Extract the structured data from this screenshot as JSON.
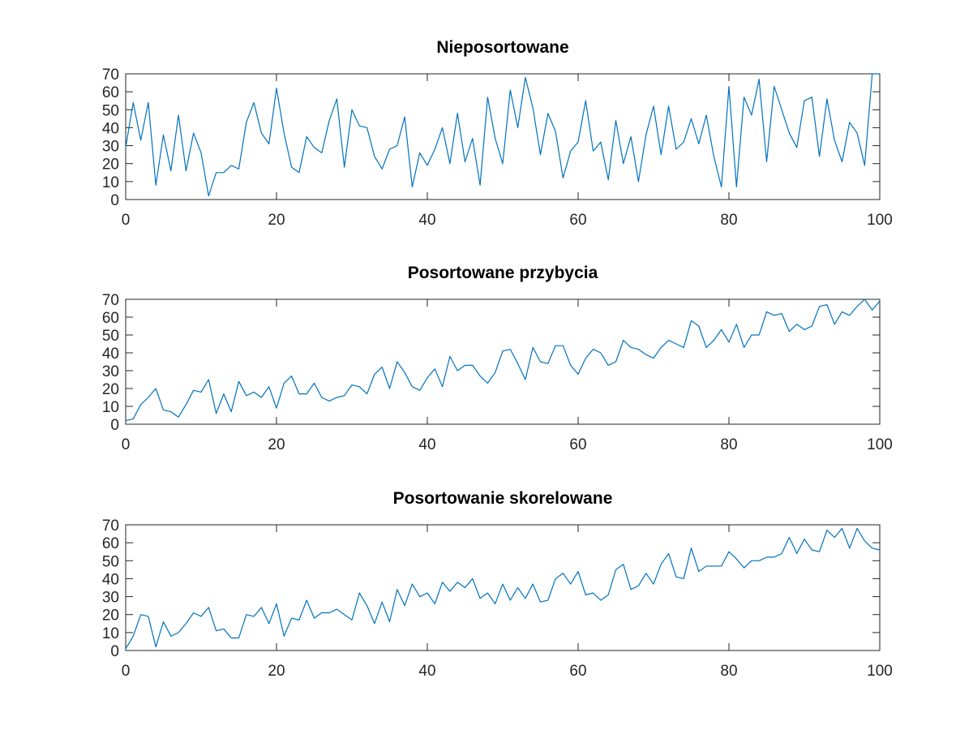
{
  "chart_data": [
    {
      "type": "line",
      "title": "Nieposortowane",
      "xlabel": "",
      "ylabel": "",
      "xlim": [
        0,
        100
      ],
      "ylim": [
        0,
        70
      ],
      "xticks": [
        0,
        20,
        40,
        60,
        80,
        100
      ],
      "yticks": [
        0,
        10,
        20,
        30,
        40,
        50,
        60,
        70
      ],
      "grid": false,
      "color": "#0072bd",
      "series": [
        {
          "x": [
            0,
            1,
            2,
            3,
            4,
            5,
            6,
            7,
            8,
            9,
            10,
            11,
            12,
            13,
            14,
            15,
            16,
            17,
            18,
            19,
            20,
            21,
            22,
            23,
            24,
            25,
            26,
            27,
            28,
            29,
            30,
            31,
            32,
            33,
            34,
            35,
            36,
            37,
            38,
            39,
            40,
            41,
            42,
            43,
            44,
            45,
            46,
            47,
            48,
            49,
            50,
            51,
            52,
            53,
            54,
            55,
            56,
            57,
            58,
            59,
            60,
            61,
            62,
            63,
            64,
            65,
            66,
            67,
            68,
            69,
            70,
            71,
            72,
            73,
            74,
            75,
            76,
            77,
            78,
            79,
            80,
            81,
            82,
            83,
            84,
            85,
            86,
            87,
            88,
            89,
            90,
            91,
            92,
            93,
            94,
            95,
            96,
            97,
            98,
            99,
            100
          ],
          "values": [
            29,
            54,
            33,
            54,
            8,
            36,
            16,
            47,
            16,
            37,
            26,
            2,
            15,
            15,
            19,
            17,
            43,
            54,
            37,
            31,
            62,
            37,
            18,
            15,
            35,
            29,
            26,
            44,
            56,
            18,
            50,
            41,
            40,
            24,
            17,
            28,
            30,
            46,
            7,
            26,
            19,
            28,
            40,
            20,
            48,
            21,
            34,
            8,
            57,
            34,
            20,
            61,
            40,
            68,
            51,
            25,
            48,
            38,
            12,
            27,
            32,
            55,
            27,
            32,
            11,
            44,
            20,
            35,
            10,
            36,
            52,
            25,
            52,
            28,
            32,
            45,
            31,
            47,
            24,
            7,
            63,
            7,
            57,
            47,
            67,
            21,
            63,
            50,
            37,
            29,
            55,
            57,
            24,
            56,
            33,
            21,
            43,
            37,
            19,
            70,
            70
          ]
        }
      ]
    },
    {
      "type": "line",
      "title": "Posortowane przybycia",
      "xlabel": "",
      "ylabel": "",
      "xlim": [
        0,
        100
      ],
      "ylim": [
        0,
        70
      ],
      "xticks": [
        0,
        20,
        40,
        60,
        80,
        100
      ],
      "yticks": [
        0,
        10,
        20,
        30,
        40,
        50,
        60,
        70
      ],
      "grid": false,
      "color": "#0072bd",
      "series": [
        {
          "x": [
            0,
            1,
            2,
            3,
            4,
            5,
            6,
            7,
            8,
            9,
            10,
            11,
            12,
            13,
            14,
            15,
            16,
            17,
            18,
            19,
            20,
            21,
            22,
            23,
            24,
            25,
            26,
            27,
            28,
            29,
            30,
            31,
            32,
            33,
            34,
            35,
            36,
            37,
            38,
            39,
            40,
            41,
            42,
            43,
            44,
            45,
            46,
            47,
            48,
            49,
            50,
            51,
            52,
            53,
            54,
            55,
            56,
            57,
            58,
            59,
            60,
            61,
            62,
            63,
            64,
            65,
            66,
            67,
            68,
            69,
            70,
            71,
            72,
            73,
            74,
            75,
            76,
            77,
            78,
            79,
            80,
            81,
            82,
            83,
            84,
            85,
            86,
            87,
            88,
            89,
            90,
            91,
            92,
            93,
            94,
            95,
            96,
            97,
            98,
            99,
            100
          ],
          "values": [
            2,
            3,
            11,
            15,
            20,
            8,
            7,
            4,
            11,
            19,
            18,
            25,
            6,
            17,
            7,
            24,
            16,
            18,
            15,
            21,
            9,
            23,
            27,
            17,
            17,
            23,
            15,
            13,
            15,
            16,
            22,
            21,
            17,
            28,
            32,
            20,
            35,
            29,
            21,
            19,
            26,
            31,
            21,
            38,
            30,
            33,
            33,
            27,
            23,
            29,
            41,
            42,
            34,
            25,
            43,
            35,
            34,
            44,
            44,
            33,
            28,
            37,
            42,
            40,
            33,
            35,
            47,
            43,
            42,
            39,
            37,
            43,
            47,
            45,
            43,
            58,
            55,
            43,
            47,
            53,
            46,
            56,
            43,
            50,
            50,
            63,
            61,
            62,
            52,
            56,
            53,
            55,
            66,
            67,
            56,
            63,
            61,
            66,
            70,
            64,
            69
          ]
        }
      ]
    },
    {
      "type": "line",
      "title": "Posortowanie skorelowane",
      "xlabel": "",
      "ylabel": "",
      "xlim": [
        0,
        100
      ],
      "ylim": [
        0,
        70
      ],
      "xticks": [
        0,
        20,
        40,
        60,
        80,
        100
      ],
      "yticks": [
        0,
        10,
        20,
        30,
        40,
        50,
        60,
        70
      ],
      "grid": false,
      "color": "#0072bd",
      "series": [
        {
          "x": [
            0,
            1,
            2,
            3,
            4,
            5,
            6,
            7,
            8,
            9,
            10,
            11,
            12,
            13,
            14,
            15,
            16,
            17,
            18,
            19,
            20,
            21,
            22,
            23,
            24,
            25,
            26,
            27,
            28,
            29,
            30,
            31,
            32,
            33,
            34,
            35,
            36,
            37,
            38,
            39,
            40,
            41,
            42,
            43,
            44,
            45,
            46,
            47,
            48,
            49,
            50,
            51,
            52,
            53,
            54,
            55,
            56,
            57,
            58,
            59,
            60,
            61,
            62,
            63,
            64,
            65,
            66,
            67,
            68,
            69,
            70,
            71,
            72,
            73,
            74,
            75,
            76,
            77,
            78,
            79,
            80,
            81,
            82,
            83,
            84,
            85,
            86,
            87,
            88,
            89,
            90,
            91,
            92,
            93,
            94,
            95,
            96,
            97,
            98,
            99,
            100
          ],
          "values": [
            1,
            8,
            20,
            19,
            2,
            16,
            8,
            10,
            15,
            21,
            19,
            24,
            11,
            12,
            7,
            7,
            20,
            19,
            24,
            15,
            26,
            8,
            18,
            17,
            28,
            18,
            21,
            21,
            23,
            20,
            17,
            32,
            25,
            15,
            27,
            16,
            34,
            25,
            37,
            30,
            32,
            26,
            38,
            33,
            38,
            35,
            40,
            29,
            32,
            26,
            37,
            28,
            35,
            29,
            37,
            27,
            28,
            40,
            43,
            37,
            44,
            31,
            32,
            28,
            31,
            45,
            48,
            34,
            36,
            43,
            37,
            48,
            54,
            41,
            40,
            57,
            44,
            47,
            47,
            47,
            55,
            51,
            46,
            50,
            50,
            52,
            52,
            54,
            63,
            54,
            62,
            56,
            55,
            67,
            63,
            68,
            57,
            68,
            61,
            57,
            56
          ]
        }
      ]
    }
  ]
}
